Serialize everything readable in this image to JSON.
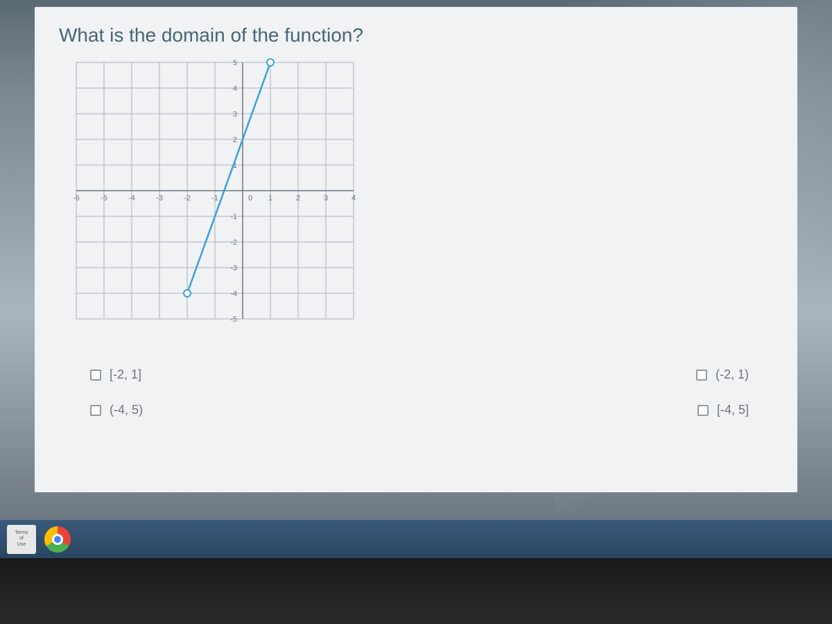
{
  "question": {
    "title": "What is the domain of the function?"
  },
  "graph": {
    "type": "line",
    "xlim": [
      -6,
      4
    ],
    "ylim": [
      -5,
      5
    ],
    "x_ticks": [
      -6,
      -5,
      -4,
      -3,
      -2,
      -1,
      0,
      1,
      2,
      3,
      4
    ],
    "y_ticks": [
      -5,
      -4,
      -3,
      -2,
      -1,
      0,
      1,
      2,
      3,
      4,
      5
    ],
    "x_tick_labels": [
      "-6",
      "-5",
      "-4",
      "-3",
      "-2",
      "-1",
      "0",
      "1",
      "2",
      "3",
      "4"
    ],
    "y_tick_labels": [
      "-5",
      "-4",
      "-3",
      "-2",
      "-1",
      "",
      "1",
      "2",
      "3",
      "4",
      "5"
    ],
    "grid_color": "#aab3bb",
    "axis_color": "#6a7580",
    "line_color": "#3aa0d8",
    "line_width": 2.5,
    "point_fill": "#ffffff",
    "point_stroke": "#3aa0d8",
    "point_radius": 5,
    "background_color": "#f0f2f4",
    "tick_label_color": "#6a7580",
    "tick_fontsize": 11,
    "line_start": {
      "x": -2,
      "y": -4,
      "open": true
    },
    "line_end": {
      "x": 1,
      "y": 5,
      "open": true
    }
  },
  "answers": {
    "options": [
      {
        "label": "[-2, 1]",
        "checked": false
      },
      {
        "label": "(-2, 1)",
        "checked": false
      },
      {
        "label": "(-4, 5)",
        "checked": false
      },
      {
        "label": "[-4, 5]",
        "checked": false
      }
    ]
  },
  "taskbar": {
    "terms_line1": "Terms",
    "terms_line2": "of",
    "terms_line3": "Use"
  }
}
